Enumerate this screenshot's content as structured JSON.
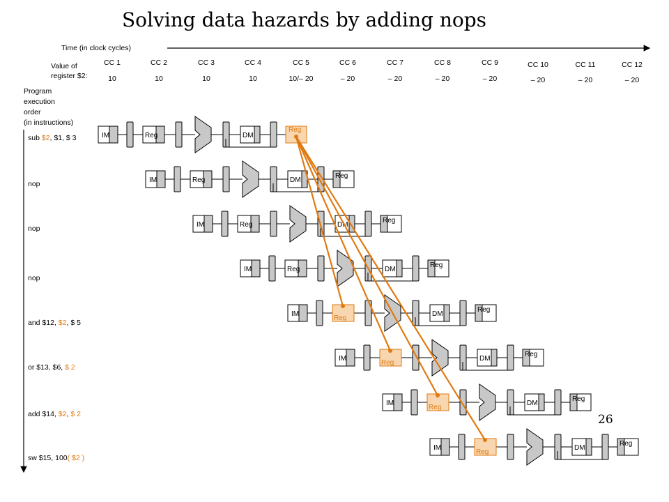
{
  "title": "Solving data hazards by adding nops",
  "time_label": "Time (in clock cycles)",
  "value_label": [
    "Value of",
    "register $2:"
  ],
  "program_label": [
    "Program",
    "execution",
    "order",
    "(in instructions)"
  ],
  "cycles": [
    {
      "label": "CC 1",
      "value": "10"
    },
    {
      "label": "CC 2",
      "value": "10"
    },
    {
      "label": "CC 3",
      "value": "10"
    },
    {
      "label": "CC 4",
      "value": "10"
    },
    {
      "label": "CC 5",
      "value": "10/– 20"
    },
    {
      "label": "CC 6",
      "value": "– 20"
    },
    {
      "label": "CC 7",
      "value": "– 20"
    },
    {
      "label": "CC 8",
      "value": "– 20"
    },
    {
      "label": "CC 9",
      "value": "– 20"
    },
    {
      "label": "CC 10",
      "value": "– 20"
    },
    {
      "label": "CC 11",
      "value": "– 20"
    },
    {
      "label": "CC 12",
      "value": "– 20"
    }
  ],
  "units": {
    "im": "IM",
    "reg": "Reg",
    "dm": "DM"
  },
  "instructions": [
    {
      "parts": [
        {
          "t": "sub ",
          "o": false
        },
        {
          "t": "$2",
          "o": true
        },
        {
          "t": ", $1, $ 3",
          "o": false
        }
      ],
      "writes_hazard": true
    },
    {
      "parts": [
        {
          "t": "nop",
          "o": false
        }
      ]
    },
    {
      "parts": [
        {
          "t": "nop",
          "o": false
        }
      ]
    },
    {
      "parts": [
        {
          "t": "nop",
          "o": false
        }
      ]
    },
    {
      "parts": [
        {
          "t": "and $12, ",
          "o": false
        },
        {
          "t": "$2",
          "o": true
        },
        {
          "t": ",  $ 5",
          "o": false
        }
      ],
      "reads_hazard": true
    },
    {
      "parts": [
        {
          "t": "or $13, $6, ",
          "o": false
        },
        {
          "t": "$ 2",
          "o": true
        }
      ],
      "reads_hazard": true
    },
    {
      "parts": [
        {
          "t": "add $14, ",
          "o": false
        },
        {
          "t": "$2",
          "o": true
        },
        {
          "t": ",  ",
          "o": false
        },
        {
          "t": "$ 2",
          "o": true
        }
      ],
      "reads_hazard": true
    },
    {
      "parts": [
        {
          "t": "sw $15, 100",
          "o": false
        },
        {
          "t": "( $2 )",
          "o": true
        }
      ],
      "reads_hazard": true
    }
  ],
  "colors": {
    "hazard": "#e07a10",
    "hazard_fill": "#f8d7b0",
    "unit_fill": "#c8c8c8",
    "line": "#000000"
  },
  "page_number": "26"
}
